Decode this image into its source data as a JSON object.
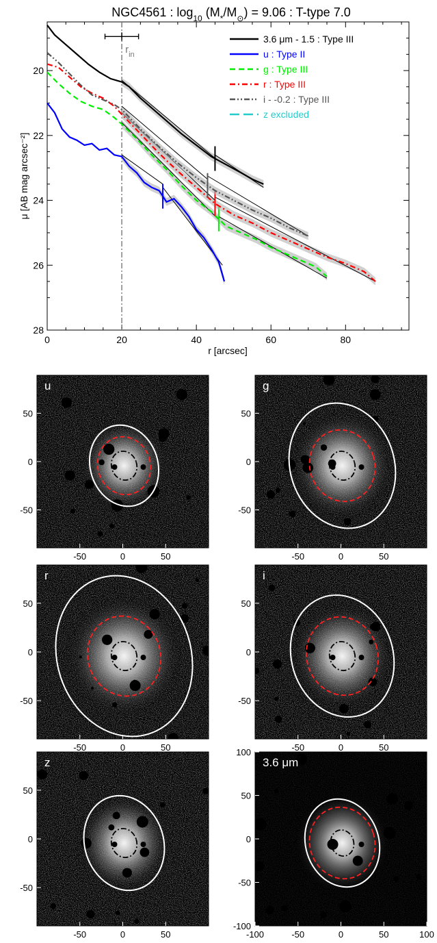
{
  "chart_data": [
    {
      "type": "line",
      "title": "NGC4561 : log10 (M*/M⊙) = 9.06 : T-type 7.0",
      "title_parts": {
        "pre": "NGC4561 : log",
        "sub": "10",
        "mid": " (M",
        "sub2": "*",
        "mid2": "/M",
        "sub3": "⊙",
        "post": ") = 9.06 : T-type 7.0"
      },
      "xlabel": "r [arcsec]",
      "ylabel": "μ [AB mag arcsec⁻²]",
      "xlim": [
        0,
        97
      ],
      "ylim": [
        28,
        18.5
      ],
      "xticks": [
        "0",
        "20",
        "40",
        "60",
        "80"
      ],
      "yticks": [
        "20",
        "22",
        "24",
        "26",
        "28"
      ],
      "y_inverted": true,
      "rin_label": "r",
      "rin_sub": "in",
      "rin": {
        "x": 20,
        "xerr": [
          15.5,
          24.5
        ]
      },
      "series": [
        {
          "name": "3.6 μm - 1.5 : Type III",
          "color": "#000000",
          "dash": "solid",
          "x": [
            0,
            2,
            5,
            8,
            11,
            14,
            17,
            20,
            22,
            25,
            28,
            32,
            36,
            40,
            44,
            48,
            52,
            55,
            58
          ],
          "y": [
            18.6,
            18.9,
            19.2,
            19.5,
            19.8,
            20.05,
            20.25,
            20.35,
            20.5,
            20.85,
            21.15,
            21.55,
            21.95,
            22.3,
            22.65,
            22.9,
            23.15,
            23.35,
            23.5
          ],
          "fit": [
            [
              20,
              20.3
            ],
            [
              45,
              22.7
            ],
            [
              45,
              22.6
            ],
            [
              58,
              23.6
            ]
          ],
          "break_x": 45
        },
        {
          "name": "u : Type II",
          "color": "#0000ff",
          "dash": "solid",
          "x": [
            0,
            2,
            4,
            6,
            8,
            10,
            12,
            14,
            16,
            18,
            20,
            22,
            24,
            26,
            28,
            30,
            32,
            34,
            36,
            38,
            40,
            42,
            44,
            46,
            47.5
          ],
          "y": [
            21.0,
            21.3,
            21.8,
            22.05,
            22.15,
            22.3,
            22.25,
            22.45,
            22.4,
            22.6,
            22.65,
            22.95,
            23.15,
            23.45,
            23.6,
            23.7,
            24.05,
            23.95,
            24.2,
            24.5,
            24.9,
            25.15,
            25.5,
            25.9,
            26.5
          ],
          "fit": [
            [
              20,
              22.6
            ],
            [
              31,
              23.5
            ],
            [
              31,
              23.6
            ],
            [
              47,
              26.0
            ]
          ],
          "break_x": 31
        },
        {
          "name": "g : Type III",
          "color": "#00ee00",
          "dash": "dash",
          "x": [
            0,
            3,
            6,
            9,
            12,
            15,
            18,
            20,
            24,
            28,
            32,
            36,
            40,
            44,
            48,
            52,
            56,
            60,
            64,
            68,
            72,
            75
          ],
          "y": [
            20.05,
            20.4,
            20.7,
            20.95,
            21.1,
            21.2,
            21.45,
            21.65,
            22.1,
            22.6,
            23.05,
            23.55,
            24.0,
            24.35,
            24.8,
            25.0,
            25.2,
            25.45,
            25.65,
            25.85,
            26.05,
            26.35
          ],
          "fit": [
            [
              20,
              21.6
            ],
            [
              46,
              24.6
            ],
            [
              46,
              24.5
            ],
            [
              75,
              26.4
            ]
          ],
          "break_x": 46
        },
        {
          "name": "r : Type III",
          "color": "#ff0000",
          "dash": "dashdot",
          "x": [
            0,
            3,
            6,
            9,
            12,
            15,
            18,
            20,
            25,
            30,
            35,
            40,
            45,
            50,
            55,
            60,
            65,
            70,
            75,
            80,
            85,
            88
          ],
          "y": [
            19.8,
            19.9,
            20.2,
            20.5,
            20.7,
            20.85,
            21.1,
            21.35,
            21.95,
            22.55,
            23.1,
            23.6,
            24.1,
            24.45,
            24.7,
            25.0,
            25.25,
            25.5,
            25.75,
            25.95,
            26.2,
            26.5
          ],
          "fit": [
            [
              20,
              21.3
            ],
            [
              45,
              24.0
            ],
            [
              45,
              23.9
            ],
            [
              88,
              26.5
            ]
          ],
          "break_x": 45
        },
        {
          "name": "i - -0.2 : Type III",
          "color": "#555555",
          "dash": "dashdotdot",
          "x": [
            0,
            3,
            6,
            9,
            12,
            15,
            18,
            20,
            25,
            30,
            35,
            40,
            45,
            50,
            55,
            60,
            65,
            70
          ],
          "y": [
            19.45,
            19.75,
            20.1,
            20.45,
            20.75,
            20.9,
            21.05,
            21.2,
            21.8,
            22.35,
            22.85,
            23.3,
            23.7,
            24.0,
            24.3,
            24.55,
            24.85,
            25.1
          ],
          "fit": [
            [
              20,
              21.1
            ],
            [
              43,
              23.35
            ],
            [
              43,
              23.25
            ],
            [
              70,
              25.1
            ]
          ],
          "break_x": 43
        },
        {
          "name": "z excluded",
          "color": "#22cccc",
          "dash": "longdash",
          "x": [],
          "y": [],
          "fit": [],
          "break_x": null
        }
      ]
    },
    {
      "type": "image",
      "panels": [
        {
          "label": "u",
          "xticks": [
            "-50",
            "0",
            "50"
          ],
          "yticks": [
            "50",
            "0",
            "-50"
          ],
          "outer": 0.48,
          "mid": 0.34,
          "inner": 0.155,
          "show_mid": true,
          "wide": false
        },
        {
          "label": "g",
          "xticks": [
            "-50",
            "0",
            "50"
          ],
          "yticks": [
            "50",
            "0",
            "-50"
          ],
          "outer": 0.74,
          "mid": 0.42,
          "inner": 0.155,
          "show_mid": true,
          "wide": false
        },
        {
          "label": "r",
          "xticks": [
            "-50",
            "0",
            "50"
          ],
          "yticks": [
            "50",
            "0",
            "-50"
          ],
          "outer": 0.95,
          "mid": 0.47,
          "inner": 0.155,
          "show_mid": true,
          "wide": false
        },
        {
          "label": "i",
          "xticks": [
            "-50",
            "0",
            "50"
          ],
          "yticks": [
            "50",
            "0",
            "-50"
          ],
          "outer": 0.72,
          "mid": 0.46,
          "inner": 0.155,
          "show_mid": true,
          "wide": false
        },
        {
          "label": "z",
          "xticks": [
            "-50",
            "0",
            "50"
          ],
          "yticks": [
            "50",
            "0",
            "-50"
          ],
          "outer": 0.56,
          "mid": 0,
          "inner": 0.155,
          "show_mid": false,
          "wide": false
        },
        {
          "label": "3.6 μm",
          "xticks": [
            "-100",
            "-50",
            "0",
            "50",
            "100"
          ],
          "yticks": [
            "100",
            "50",
            "0",
            "-50",
            "-100"
          ],
          "outer": 0.52,
          "mid": 0.42,
          "inner": 0.14,
          "show_mid": true,
          "wide": true
        }
      ]
    }
  ]
}
